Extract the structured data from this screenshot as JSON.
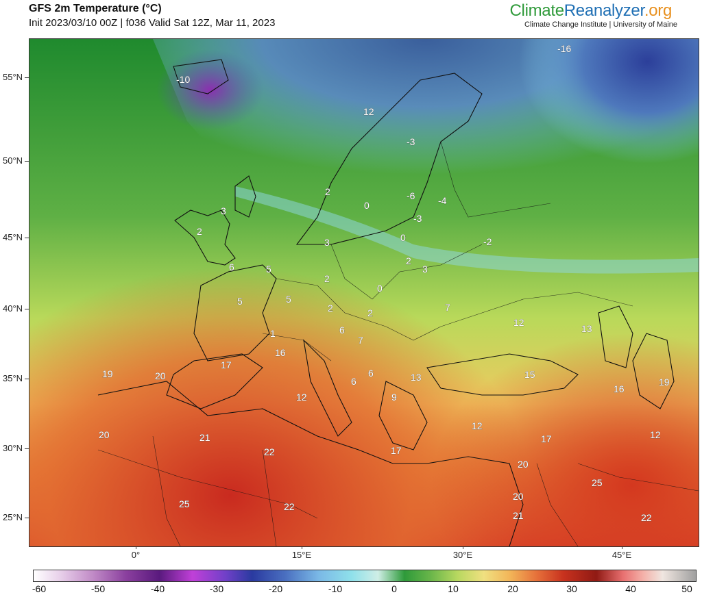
{
  "header": {
    "title": "GFS 2m Temperature (°C)",
    "subtitle": "Init 2023/03/10 00Z | f036 Valid Sat 12Z, Mar 11, 2023"
  },
  "brand": {
    "part1": "Climate",
    "part2": "Reanalyzer",
    "part3": ".org",
    "tagline": "Climate Change Institute | University of Maine"
  },
  "axes": {
    "lat_labels": [
      "55°N",
      "50°N",
      "45°N",
      "40°N",
      "35°N",
      "30°N",
      "25°N"
    ],
    "lon_labels": [
      "0°",
      "15°E",
      "30°E",
      "45°E"
    ]
  },
  "colorbar": {
    "labels": [
      "-60",
      "-50",
      "-40",
      "-30",
      "-20",
      "-10",
      "0",
      "10",
      "20",
      "30",
      "40",
      "50"
    ],
    "min": -60,
    "max": 50
  },
  "map_values": [
    "-10",
    "-16",
    "12",
    "-3",
    "2",
    "0",
    "-6",
    "-4",
    "-3",
    "0",
    "-2",
    "3",
    "2",
    "3",
    "6",
    "5",
    "2",
    "2",
    "3",
    "5",
    "5",
    "0",
    "7",
    "2",
    "2",
    "6",
    "7",
    "12",
    "13",
    "1",
    "16",
    "17",
    "19",
    "20",
    "6",
    "6",
    "13",
    "15",
    "16",
    "19",
    "12",
    "9",
    "12",
    "20",
    "21",
    "22",
    "17",
    "17",
    "12",
    "20",
    "25",
    "22",
    "20",
    "21",
    "25",
    "22"
  ]
}
